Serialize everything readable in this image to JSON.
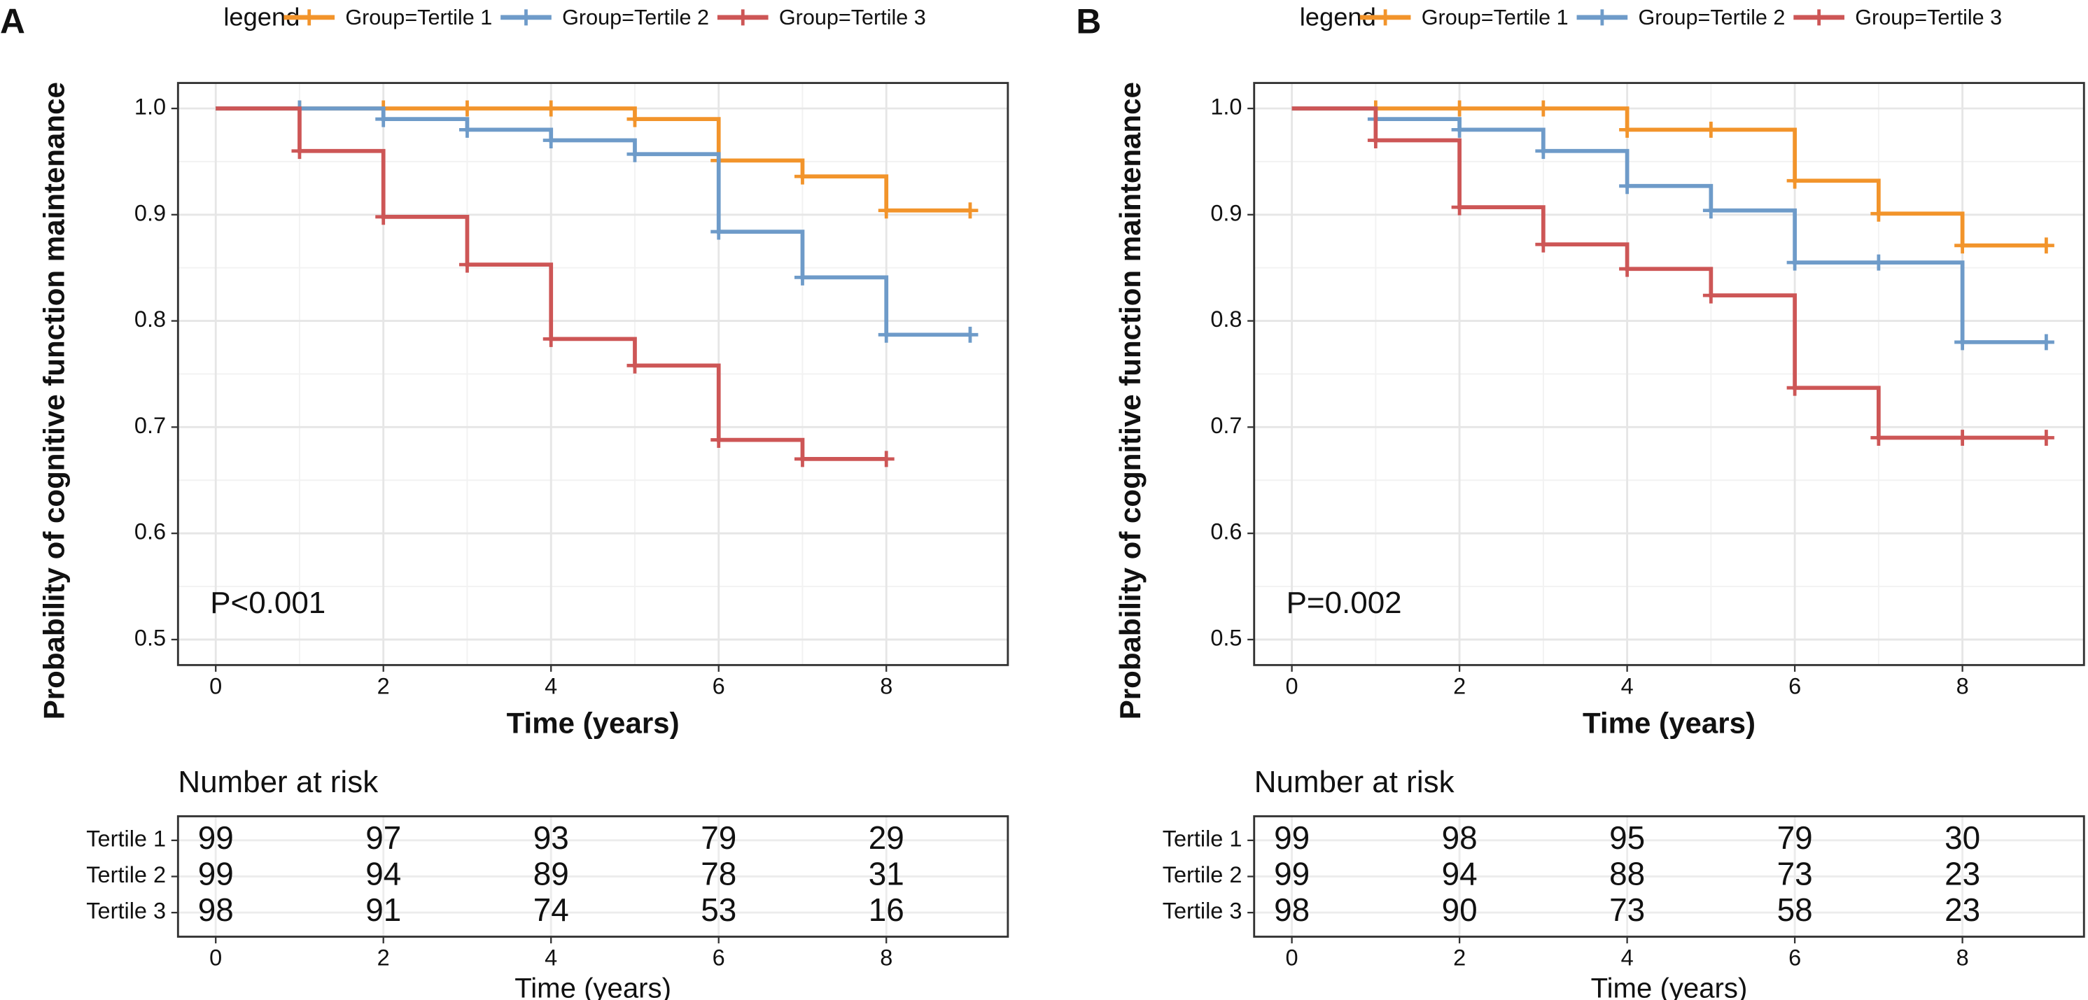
{
  "chart_data": [
    {
      "type": "step",
      "panel": "A",
      "legend_title": "legend",
      "x_label": "Time (years)",
      "y_label": "Probability of cognitive function maintenance",
      "annotation": "P<0.001",
      "xlim": [
        -0.45,
        9.45
      ],
      "ylim": [
        0.476,
        1.024
      ],
      "xticks": [
        0,
        2,
        4,
        6,
        8
      ],
      "yticks": [
        0.5,
        0.6,
        0.7,
        0.8,
        0.9,
        {
          "value": 1,
          "label": "1.0"
        }
      ],
      "grid": true,
      "series": [
        {
          "name": "Group=Tertile 1",
          "color": "#f2942b",
          "x": [
            0,
            5,
            6,
            7,
            8,
            9
          ],
          "y": [
            1,
            0.99,
            0.951,
            0.936,
            0.904,
            0.904
          ],
          "censor_times": [
            1,
            2,
            3,
            4,
            5,
            6,
            7,
            8,
            9
          ]
        },
        {
          "name": "Group=Tertile 2",
          "color": "#6e9bc9",
          "x": [
            0,
            2,
            3,
            4,
            5,
            6,
            7,
            8,
            9
          ],
          "y": [
            1,
            0.99,
            0.98,
            0.97,
            0.957,
            0.884,
            0.841,
            0.787,
            0.787
          ],
          "censor_times": [
            1,
            2,
            3,
            4,
            5,
            6,
            7,
            8,
            9
          ]
        },
        {
          "name": "Group=Tertile 3",
          "color": "#cd5656",
          "x": [
            0,
            1,
            2,
            3,
            4,
            5,
            6,
            7,
            8
          ],
          "y": [
            1,
            0.96,
            0.898,
            0.853,
            0.783,
            0.758,
            0.688,
            0.67,
            0.67
          ],
          "censor_times": [
            1,
            2,
            3,
            4,
            5,
            6,
            7,
            8
          ]
        }
      ],
      "risk_table": {
        "title": "Number at risk",
        "x": [
          0,
          2,
          4,
          6,
          8
        ],
        "rows": [
          {
            "label": "Tertile 1",
            "color": "#f2942b",
            "values": [
              99,
              97,
              93,
              79,
              29
            ]
          },
          {
            "label": "Tertile 2",
            "color": "#6e9bc9",
            "values": [
              99,
              94,
              89,
              78,
              31
            ]
          },
          {
            "label": "Tertile 3",
            "color": "#cd5656",
            "values": [
              98,
              91,
              74,
              53,
              16
            ]
          }
        ]
      }
    },
    {
      "type": "step",
      "panel": "B",
      "legend_title": "legend",
      "x_label": "Time (years)",
      "y_label": "Probability of cognitive function maintenance",
      "annotation": "P=0.002",
      "xlim": [
        -0.45,
        9.45
      ],
      "ylim": [
        0.476,
        1.024
      ],
      "xticks": [
        0,
        2,
        4,
        6,
        8
      ],
      "yticks": [
        0.5,
        0.6,
        0.7,
        0.8,
        0.9,
        {
          "value": 1,
          "label": "1.0"
        }
      ],
      "grid": true,
      "series": [
        {
          "name": "Group=Tertile 1",
          "color": "#f2942b",
          "x": [
            0,
            4,
            6,
            7,
            8,
            9
          ],
          "y": [
            1,
            0.98,
            0.932,
            0.901,
            0.871,
            0.871
          ],
          "censor_times": [
            1,
            2,
            3,
            4,
            5,
            6,
            7,
            8,
            9
          ]
        },
        {
          "name": "Group=Tertile 2",
          "color": "#6e9bc9",
          "x": [
            0,
            1,
            2,
            3,
            4,
            5,
            6,
            8,
            9
          ],
          "y": [
            1,
            0.99,
            0.98,
            0.96,
            0.927,
            0.904,
            0.855,
            0.78,
            0.78
          ],
          "censor_times": [
            1,
            2,
            3,
            4,
            5,
            6,
            7,
            8,
            9
          ]
        },
        {
          "name": "Group=Tertile 3",
          "color": "#cd5656",
          "x": [
            0,
            1,
            2,
            3,
            4,
            5,
            6,
            7,
            9
          ],
          "y": [
            1,
            0.97,
            0.907,
            0.872,
            0.849,
            0.824,
            0.737,
            0.69,
            0.69
          ],
          "censor_times": [
            1,
            2,
            3,
            4,
            5,
            6,
            7,
            8,
            9
          ]
        }
      ],
      "risk_table": {
        "title": "Number at risk",
        "x": [
          0,
          2,
          4,
          6,
          8
        ],
        "rows": [
          {
            "label": "Tertile 1",
            "color": "#f2942b",
            "values": [
              99,
              98,
              95,
              79,
              30
            ]
          },
          {
            "label": "Tertile 2",
            "color": "#6e9bc9",
            "values": [
              99,
              94,
              88,
              73,
              23
            ]
          },
          {
            "label": "Tertile 3",
            "color": "#cd5656",
            "values": [
              98,
              90,
              73,
              58,
              23
            ]
          }
        ]
      }
    }
  ]
}
